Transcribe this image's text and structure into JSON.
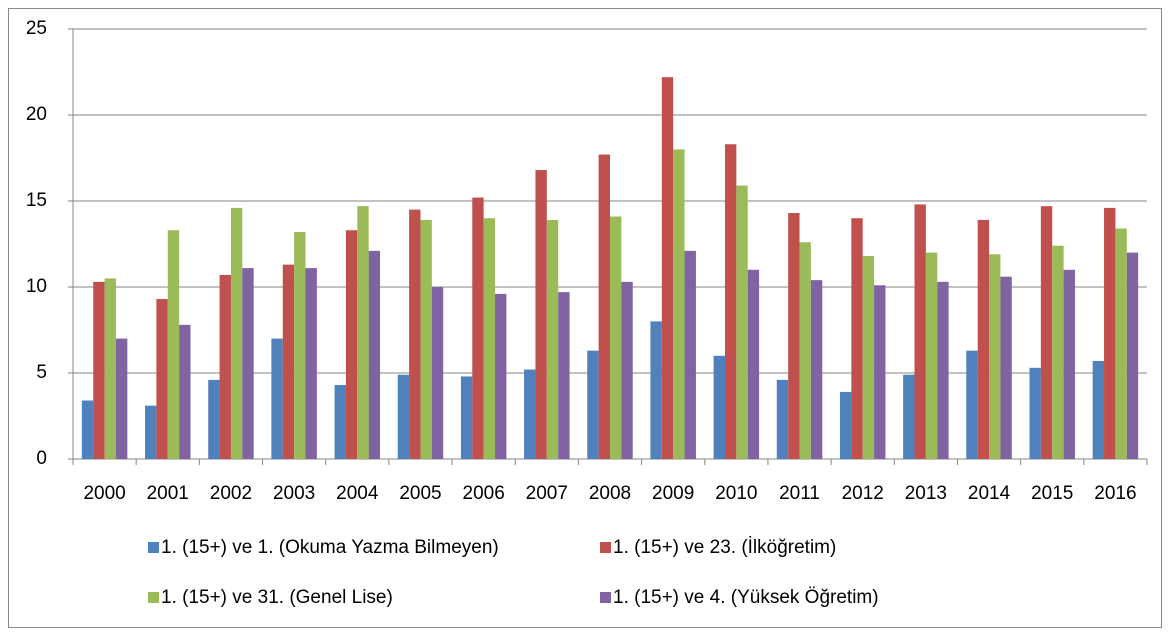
{
  "chart_data": {
    "type": "bar",
    "categories": [
      "2000",
      "2001",
      "2002",
      "2003",
      "2004",
      "2005",
      "2006",
      "2007",
      "2008",
      "2009",
      "2010",
      "2011",
      "2012",
      "2013",
      "2014",
      "2015",
      "2016"
    ],
    "series": [
      {
        "name": "1. (15+) ve 1. (Okuma Yazma Bilmeyen)",
        "color": "#4f81bd",
        "values": [
          3.4,
          3.1,
          4.6,
          7.0,
          4.3,
          4.9,
          4.8,
          5.2,
          6.3,
          8.0,
          6.0,
          4.6,
          3.9,
          4.9,
          6.3,
          5.3,
          5.7
        ]
      },
      {
        "name": "1. (15+) ve 23. (İlköğretim)",
        "color": "#c0504d",
        "values": [
          10.3,
          9.3,
          10.7,
          11.3,
          13.3,
          14.5,
          15.2,
          16.8,
          17.7,
          22.2,
          18.3,
          14.3,
          14.0,
          14.8,
          13.9,
          14.7,
          14.6
        ]
      },
      {
        "name": "1. (15+) ve 31. (Genel Lise)",
        "color": "#9bbb59",
        "values": [
          10.5,
          13.3,
          14.6,
          13.2,
          14.7,
          13.9,
          14.0,
          13.9,
          14.1,
          18.0,
          15.9,
          12.6,
          11.8,
          12.0,
          11.9,
          12.4,
          13.4
        ]
      },
      {
        "name": "1. (15+) ve 4. (Yüksek Öğretim)",
        "color": "#8064a2",
        "values": [
          7.0,
          7.8,
          11.1,
          11.1,
          12.1,
          10.0,
          9.6,
          9.7,
          10.3,
          12.1,
          11.0,
          10.4,
          10.1,
          10.3,
          10.6,
          11.0,
          12.0
        ]
      }
    ],
    "ylim": [
      0,
      25
    ],
    "yticks": [
      0,
      5,
      10,
      15,
      20,
      25
    ],
    "grid": true,
    "legend": "bottom"
  }
}
